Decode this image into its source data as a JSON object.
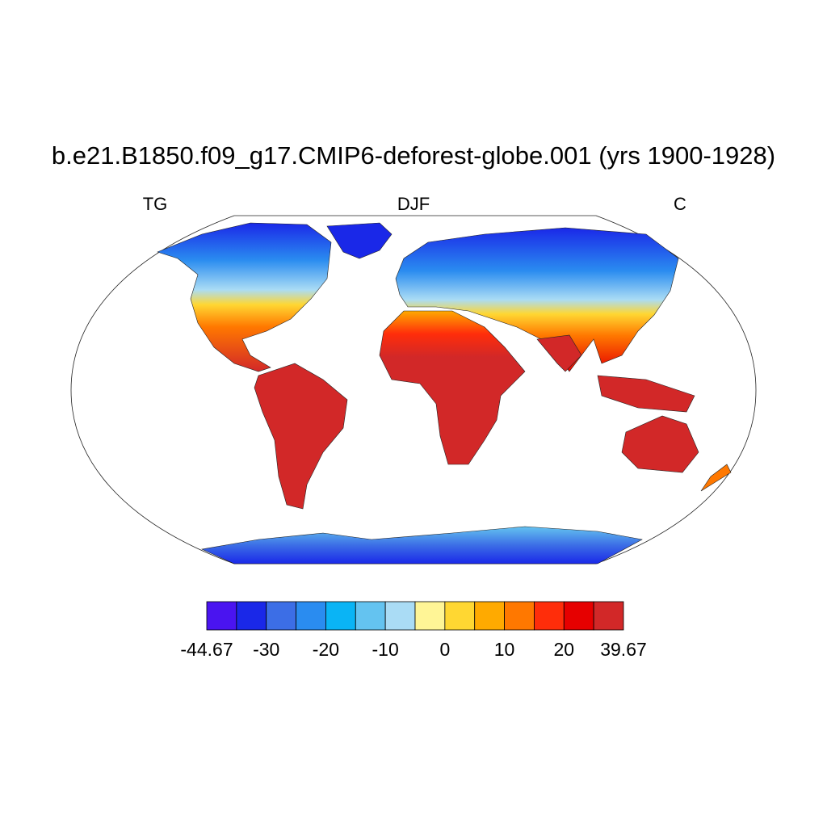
{
  "title": "b.e21.B1850.f09_g17.CMIP6-deforest-globe.001 (yrs 1900-1928)",
  "left_string": "TG",
  "center_string": "DJF",
  "right_string": "C",
  "colorbar": {
    "colors": [
      "#4a14f0",
      "#1a28e8",
      "#3c6ee6",
      "#2a8cf0",
      "#0ab4f5",
      "#64c3f0",
      "#aadcf5",
      "#fff596",
      "#ffd732",
      "#ffaa00",
      "#ff7800",
      "#ff2d0a",
      "#e60000",
      "#d22828"
    ],
    "labels": [
      -44.67,
      -30,
      -20,
      -10,
      0,
      10,
      20,
      39.67
    ]
  }
}
